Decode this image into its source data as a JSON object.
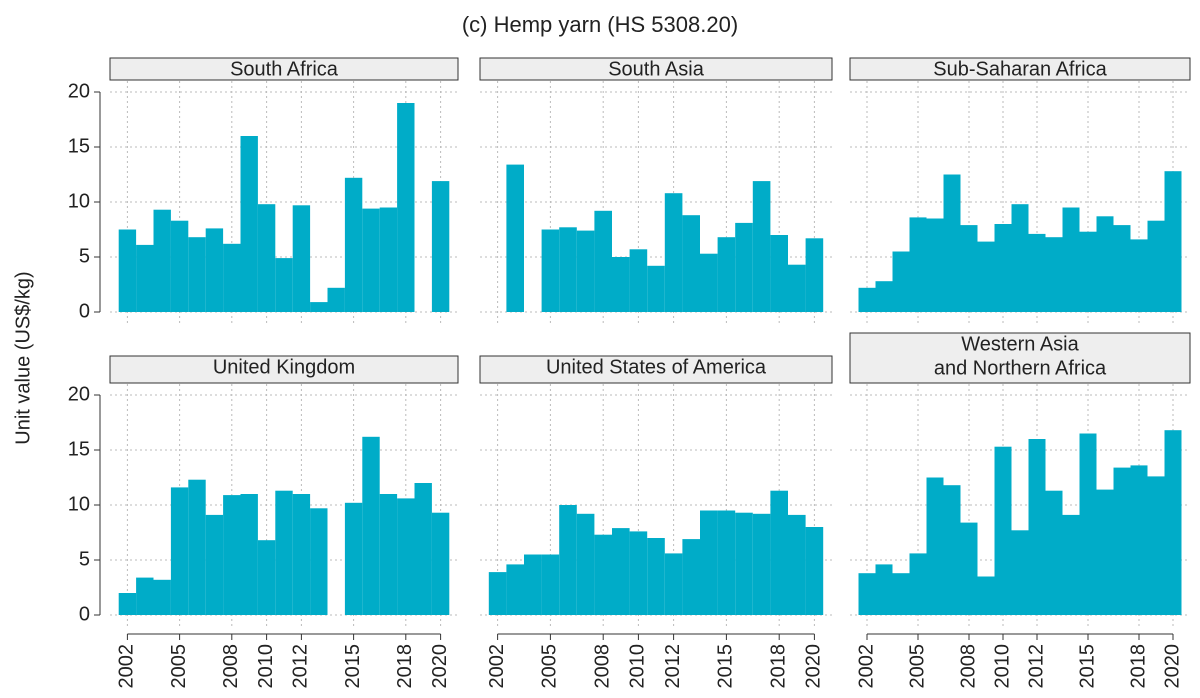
{
  "chart_data": {
    "type": "bar",
    "title": "(c) Hemp yarn (HS 5308.20)",
    "ylabel": "Unit value (US$/kg)",
    "x": [
      2002,
      2003,
      2004,
      2005,
      2006,
      2007,
      2008,
      2009,
      2010,
      2011,
      2012,
      2013,
      2014,
      2015,
      2016,
      2017,
      2018,
      2019,
      2020
    ],
    "xlim": [
      2001,
      2021
    ],
    "xticks": [
      2002,
      2005,
      2008,
      2010,
      2012,
      2015,
      2018,
      2020
    ],
    "ylim": [
      -1,
      21
    ],
    "yticks": [
      0,
      5,
      10,
      15,
      20
    ],
    "color": "#00acc8",
    "grid": true,
    "panels": [
      {
        "title": [
          "South Africa"
        ],
        "values": [
          7.5,
          6.1,
          9.3,
          8.3,
          6.8,
          7.6,
          6.2,
          16.0,
          9.8,
          4.9,
          9.7,
          0.9,
          2.2,
          12.2,
          9.4,
          9.5,
          19.0,
          null,
          11.9
        ]
      },
      {
        "title": [
          "South Asia"
        ],
        "values": [
          null,
          13.4,
          null,
          7.5,
          7.7,
          7.4,
          9.2,
          5.0,
          5.7,
          4.2,
          10.8,
          8.8,
          5.3,
          6.8,
          8.1,
          11.9,
          7.0,
          4.3,
          6.7
        ]
      },
      {
        "title": [
          "Sub-Saharan Africa"
        ],
        "values": [
          2.2,
          2.8,
          5.5,
          8.6,
          8.5,
          12.5,
          7.9,
          6.4,
          8.0,
          9.8,
          7.1,
          6.8,
          9.5,
          7.3,
          8.7,
          7.9,
          6.6,
          8.3,
          12.8
        ]
      },
      {
        "title": [
          "United Kingdom"
        ],
        "values": [
          2.0,
          3.4,
          3.2,
          11.6,
          12.3,
          9.1,
          10.9,
          11.0,
          6.8,
          11.3,
          11.0,
          9.7,
          null,
          10.2,
          16.2,
          11.0,
          10.6,
          12.0,
          9.3
        ]
      },
      {
        "title": [
          "United States of America"
        ],
        "values": [
          3.9,
          4.6,
          5.5,
          5.5,
          10.0,
          9.2,
          7.3,
          7.9,
          7.6,
          7.0,
          5.6,
          6.9,
          9.5,
          9.5,
          9.3,
          9.2,
          11.3,
          9.1,
          8.0
        ]
      },
      {
        "title": [
          "Western Asia",
          "and Northern Africa"
        ],
        "values": [
          3.8,
          4.6,
          3.8,
          5.6,
          12.5,
          11.8,
          8.4,
          3.5,
          15.3,
          7.7,
          16.0,
          11.3,
          9.1,
          16.5,
          11.4,
          13.4,
          13.6,
          12.6,
          16.8
        ]
      }
    ]
  }
}
